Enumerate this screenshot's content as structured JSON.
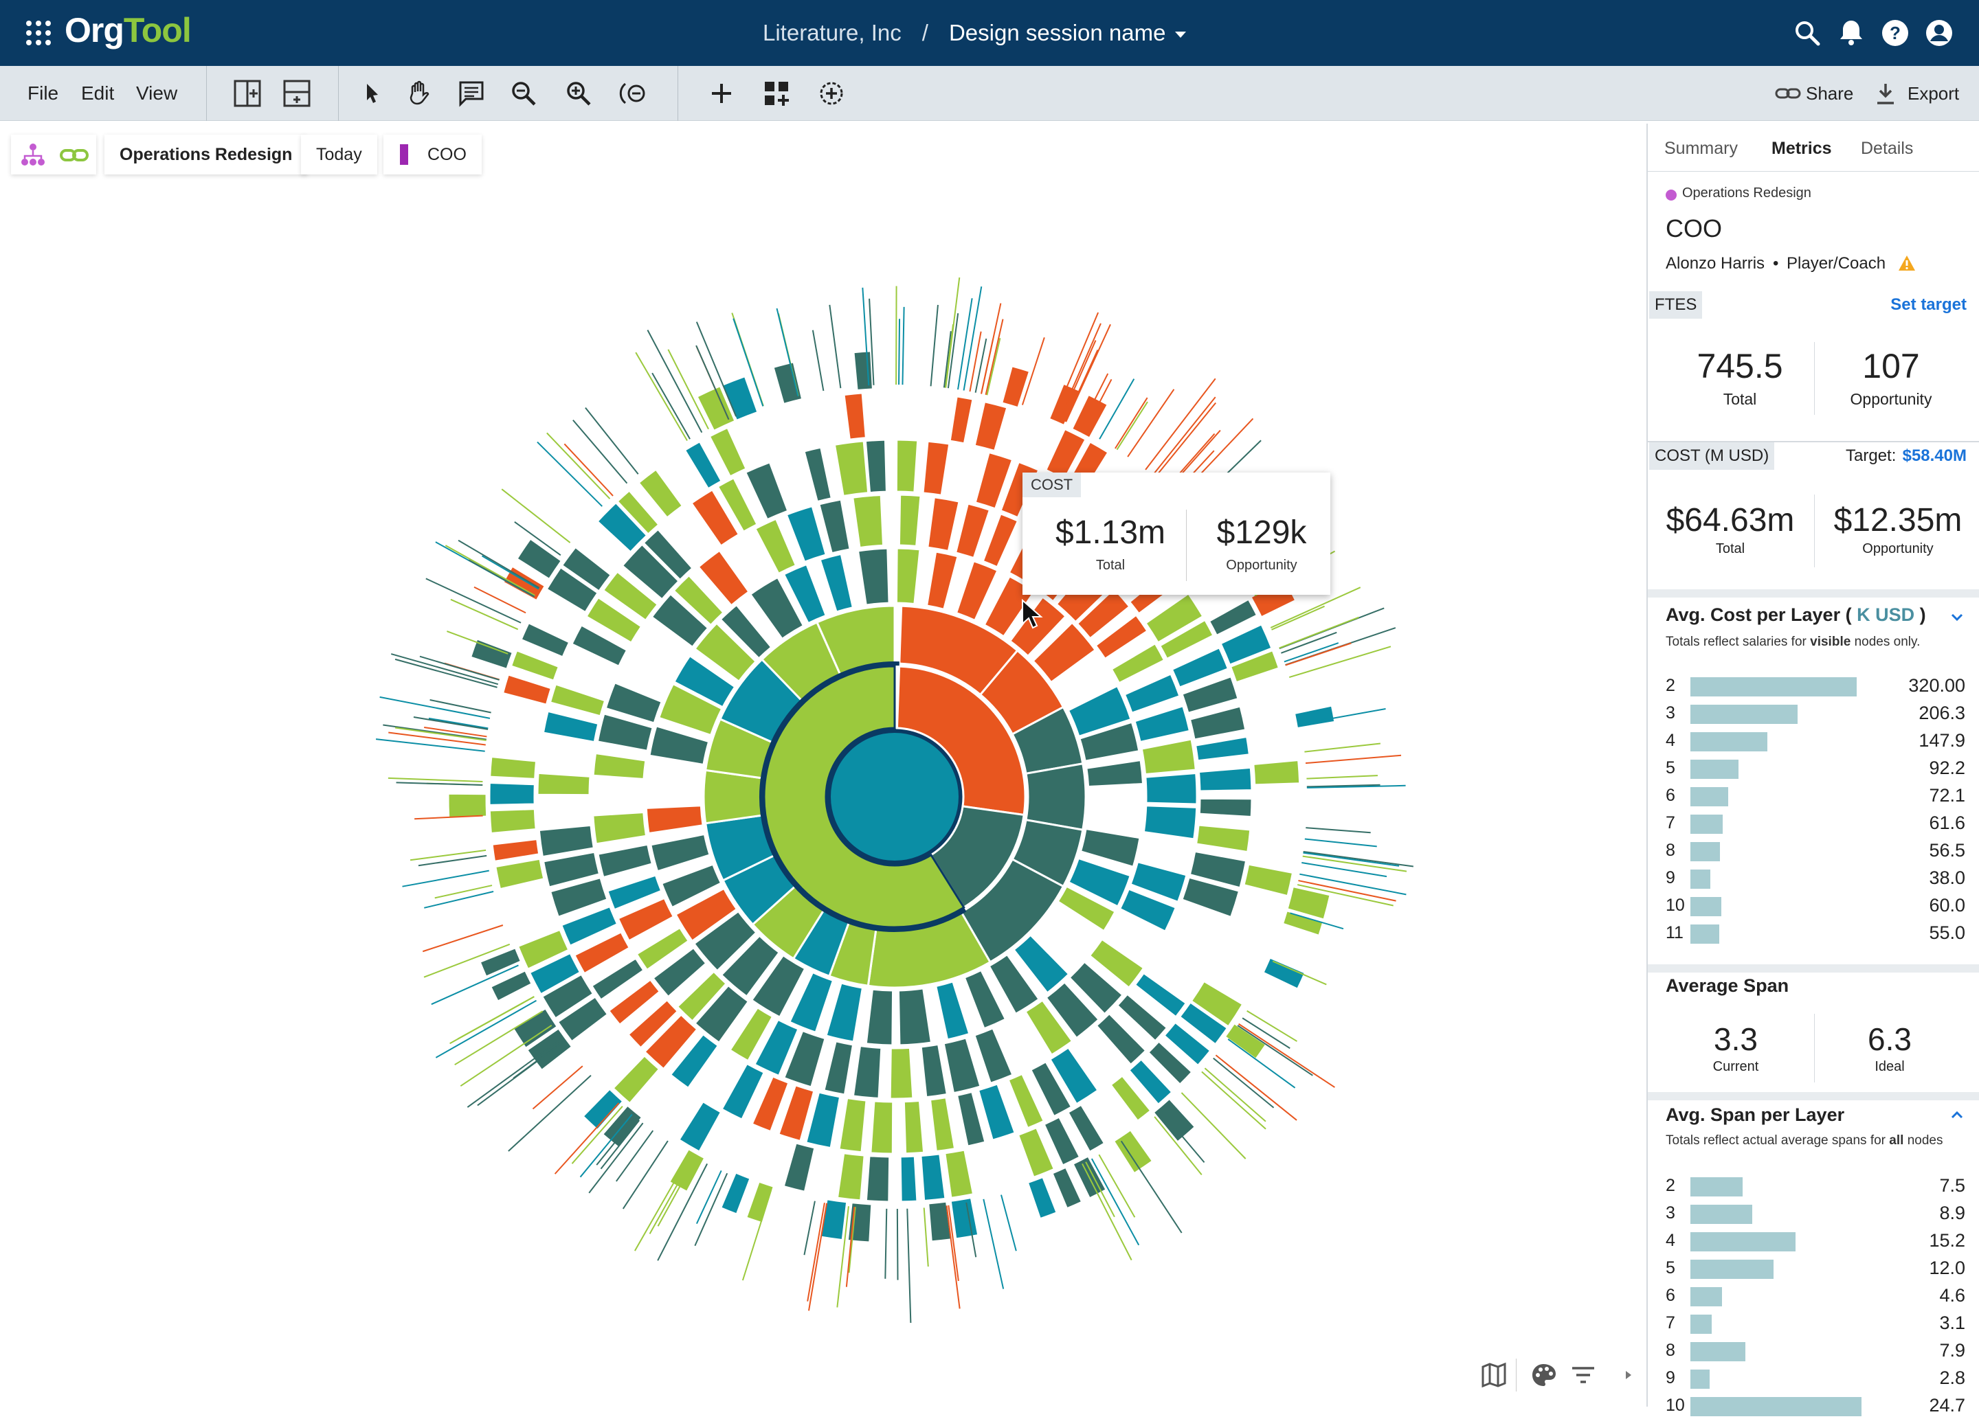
{
  "app": {
    "logo_org": "Org",
    "logo_tool": "Tool",
    "company": "Literature, Inc",
    "breadcrumb_sep": "/",
    "session": "Design session name"
  },
  "menus": [
    "File",
    "Edit",
    "View"
  ],
  "toolbar_right": {
    "share": "Share",
    "export": "Export"
  },
  "context": {
    "scenario": "Operations Redesign",
    "date": "Today",
    "role": "COO",
    "role_color": "#9c27b0"
  },
  "tooltip": {
    "label": "COST",
    "total": "$1.13m",
    "total_label": "Total",
    "opportunity": "$129k",
    "opportunity_label": "Opportunity"
  },
  "panel": {
    "tabs": [
      "Summary",
      "Metrics",
      "Details"
    ],
    "active_tab": "Metrics",
    "scenario": "Operations Redesign",
    "scenario_color": "#c35bd1",
    "title": "COO",
    "person": "Alonzo Harris",
    "dot": "•",
    "role_type": "Player/Coach",
    "ftes": {
      "label": "FTES",
      "set_target": "Set target",
      "total": "745.5",
      "total_label": "Total",
      "opportunity": "107",
      "opportunity_label": "Opportunity"
    },
    "cost": {
      "label": "COST (M USD)",
      "target_label": "Target:",
      "target": "$58.40M",
      "total": "$64.63m",
      "total_label": "Total",
      "opportunity": "$12.35m",
      "opportunity_label": "Opportunity"
    },
    "avg_cost": {
      "title": "Avg. Cost per Layer (",
      "unit": "K USD",
      "title_end": ")",
      "note_pre": "Totals reflect salaries for ",
      "note_bold": "visible",
      "note_post": " nodes only.",
      "rows": [
        {
          "layer": "2",
          "value": "320.00",
          "v": 320.0
        },
        {
          "layer": "3",
          "value": "206.3",
          "v": 206.3
        },
        {
          "layer": "4",
          "value": "147.9",
          "v": 147.9
        },
        {
          "layer": "5",
          "value": "92.2",
          "v": 92.2
        },
        {
          "layer": "6",
          "value": "72.1",
          "v": 72.1
        },
        {
          "layer": "7",
          "value": "61.6",
          "v": 61.6
        },
        {
          "layer": "8",
          "value": "56.5",
          "v": 56.5
        },
        {
          "layer": "9",
          "value": "38.0",
          "v": 38.0
        },
        {
          "layer": "10",
          "value": "60.0",
          "v": 60.0
        },
        {
          "layer": "11",
          "value": "55.0",
          "v": 55.0
        }
      ]
    },
    "avg_span": {
      "title": "Average Span",
      "current": "3.3",
      "current_label": "Current",
      "ideal": "6.3",
      "ideal_label": "Ideal"
    },
    "span_layer": {
      "title": "Avg. Span per Layer",
      "note_pre": "Totals reflect actual average spans for ",
      "note_bold": "all",
      "note_post": " nodes",
      "rows": [
        {
          "layer": "2",
          "value": "7.5",
          "v": 7.5
        },
        {
          "layer": "3",
          "value": "8.9",
          "v": 8.9
        },
        {
          "layer": "4",
          "value": "15.2",
          "v": 15.2
        },
        {
          "layer": "5",
          "value": "12.0",
          "v": 12.0
        },
        {
          "layer": "6",
          "value": "4.6",
          "v": 4.6
        },
        {
          "layer": "7",
          "value": "3.1",
          "v": 3.1
        },
        {
          "layer": "8",
          "value": "7.9",
          "v": 7.9
        },
        {
          "layer": "9",
          "value": "2.8",
          "v": 2.8
        },
        {
          "layer": "10",
          "value": "24.7",
          "v": 24.7
        }
      ]
    }
  },
  "colors": {
    "navy": "#0a3a63",
    "lime": "#9bc93d",
    "teal": "#0b8ea5",
    "slate": "#356e66",
    "orange": "#e8561f",
    "amber": "#ef8d2c",
    "link": "#1a73d9",
    "bar": "#a7ccd1"
  }
}
